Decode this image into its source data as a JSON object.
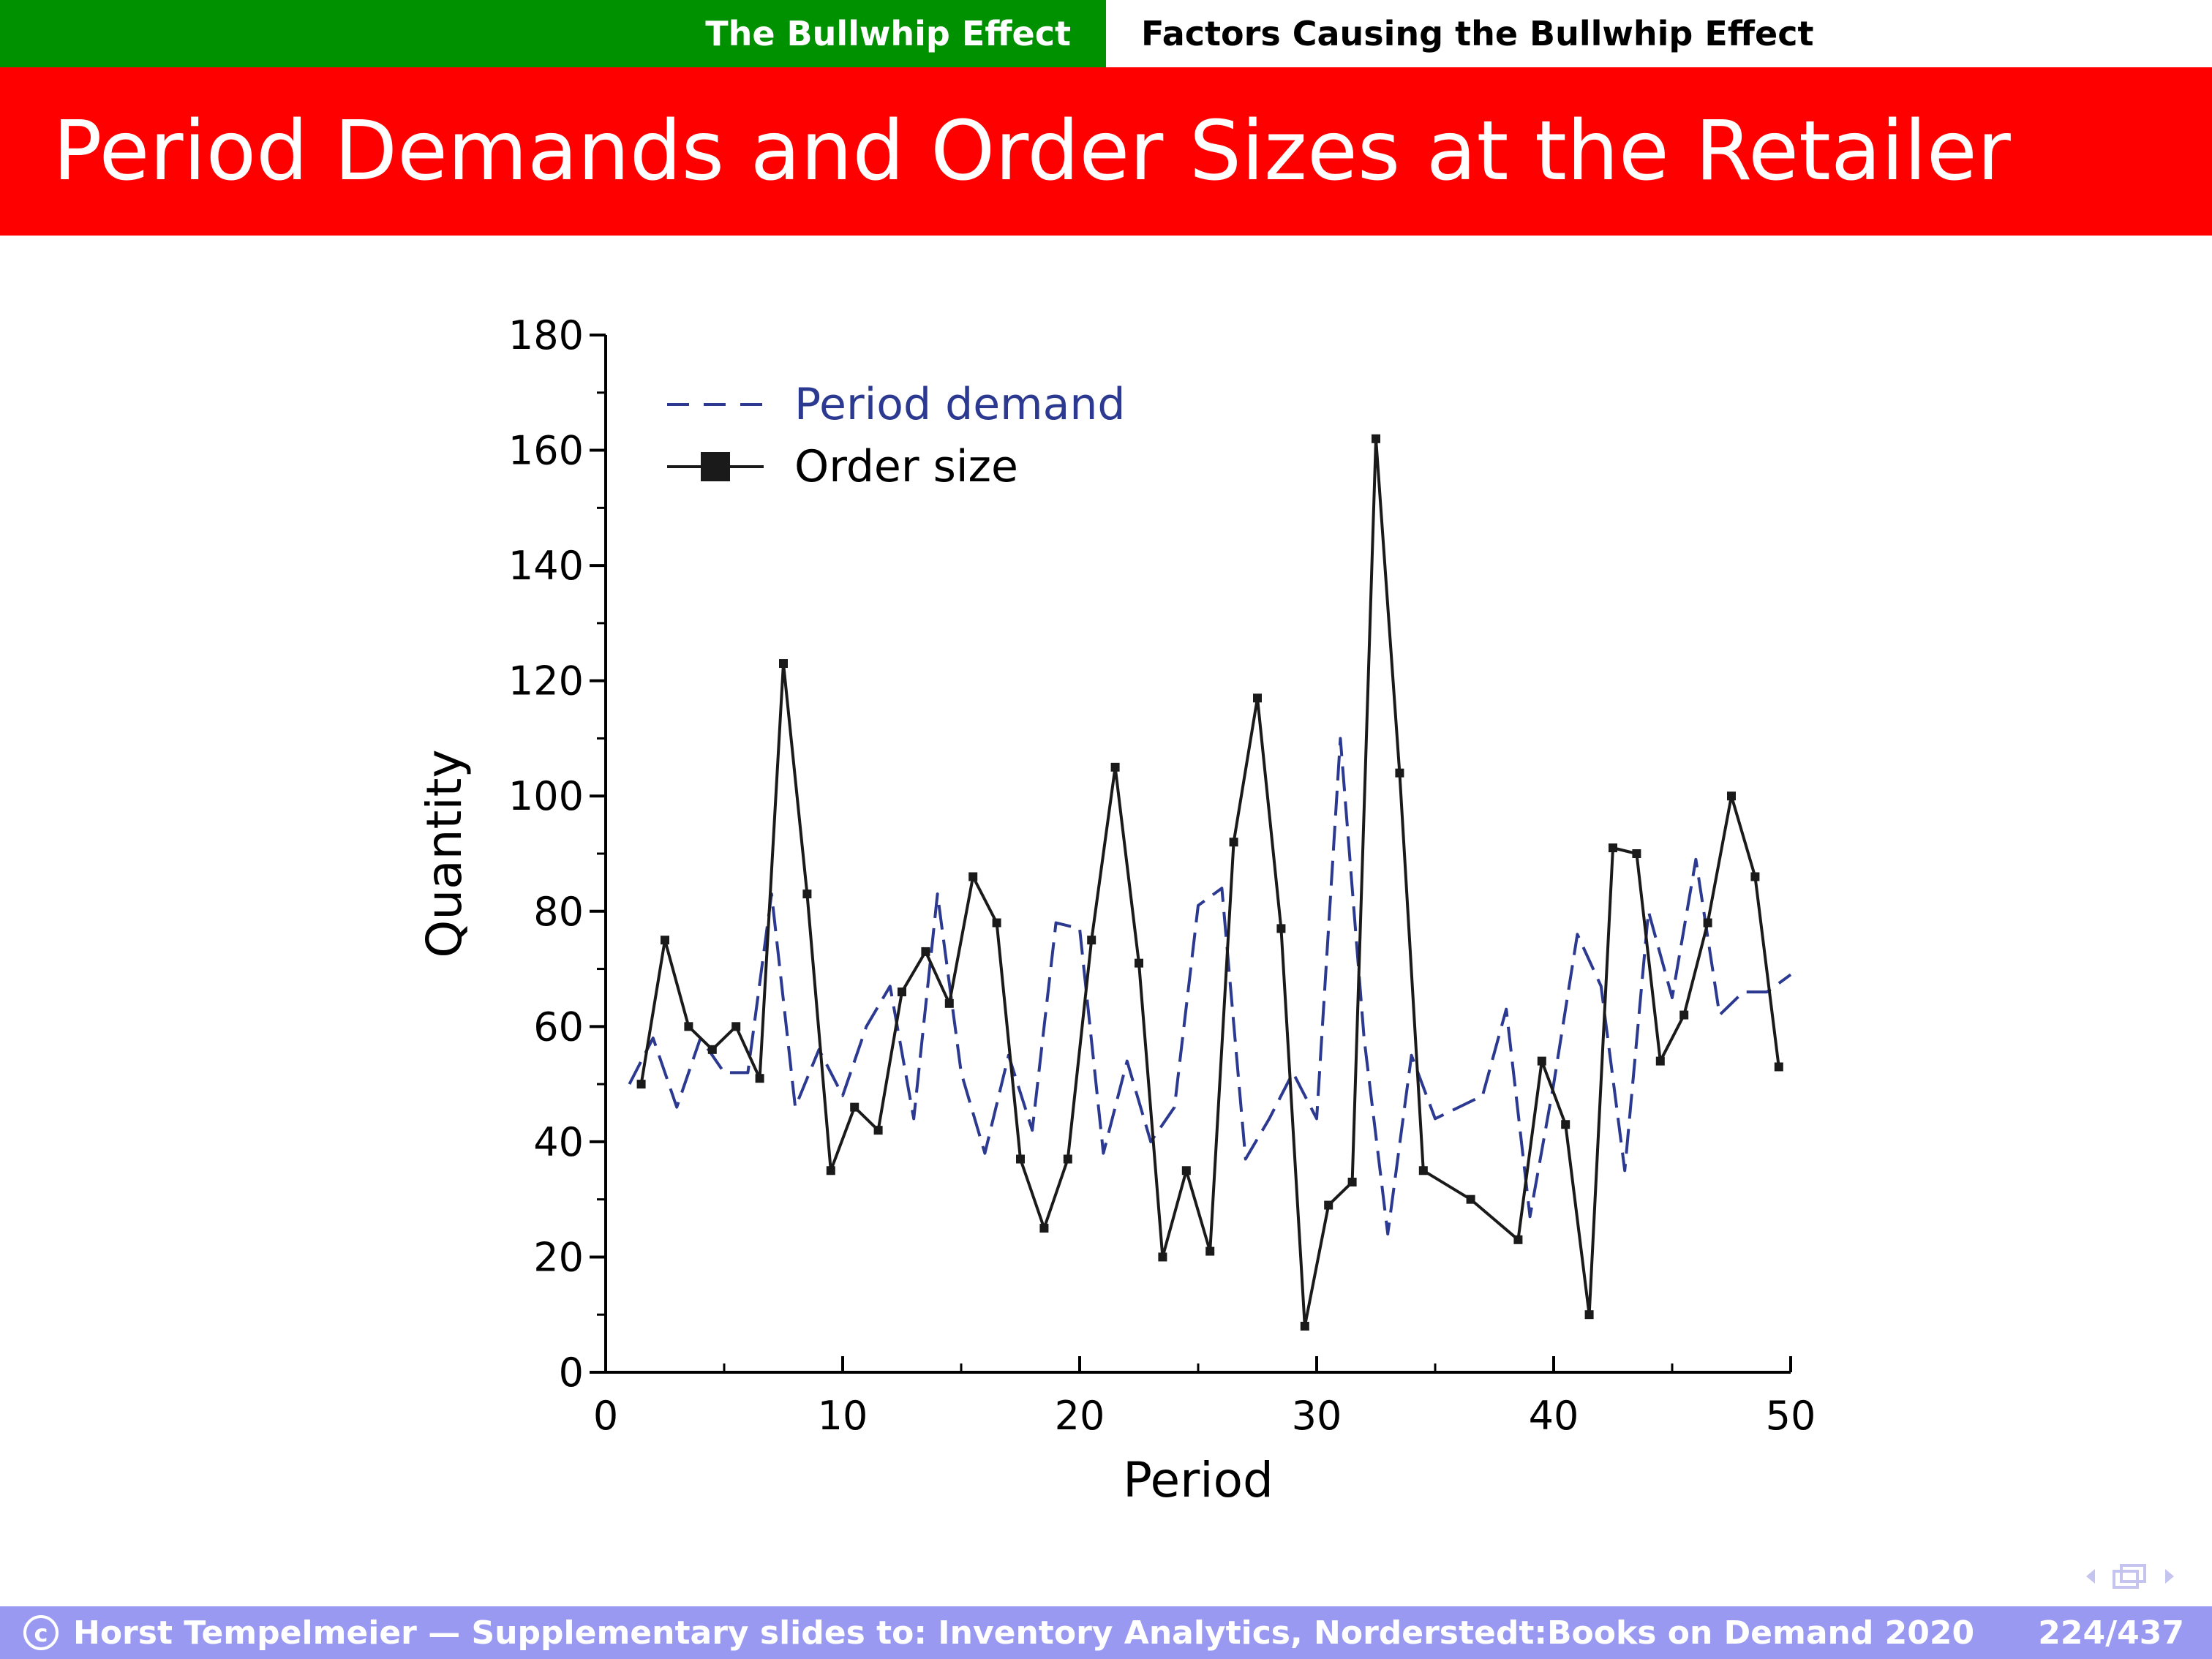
{
  "header": {
    "section": "The Bullwhip Effect",
    "subsection": "Factors Causing the Bullwhip Effect"
  },
  "slide": {
    "title": "Period Demands and Order Sizes at the Retailer"
  },
  "footer": {
    "copyright_symbol": "c",
    "text": "Horst Tempelmeier — Supplementary slides to: Inventory Analytics, Norderstedt:Books on Demand 2020",
    "page": "224/437"
  },
  "colors": {
    "section_bar": "#009100",
    "title_bar": "#ff0000",
    "footer_bar": "#9999f2",
    "demand_series": "#2b3990",
    "order_series": "#1a1a1a"
  },
  "chart_data": {
    "type": "line",
    "xlabel": "Period",
    "ylabel": "Quantity",
    "xlim": [
      0,
      50
    ],
    "ylim": [
      0,
      180
    ],
    "xticks": [
      0,
      10,
      20,
      30,
      40,
      50
    ],
    "yticks": [
      0,
      20,
      40,
      60,
      80,
      100,
      120,
      140,
      160,
      180
    ],
    "legend_position": "top-left",
    "series": [
      {
        "name": "Period demand",
        "style": "dashed",
        "x": [
          1,
          2,
          3,
          4,
          5,
          6,
          7,
          8,
          9,
          10,
          11,
          12,
          13,
          14,
          15,
          16,
          17,
          18,
          19,
          20,
          21,
          22,
          23,
          24,
          25,
          26,
          27,
          28,
          29,
          30,
          31,
          32,
          33,
          34,
          35,
          36,
          37,
          38,
          39,
          40,
          41,
          42,
          43,
          44,
          45,
          46,
          47,
          48,
          49,
          50
        ],
        "values": [
          50,
          58,
          46,
          58,
          52,
          52,
          83,
          46,
          56,
          48,
          60,
          67,
          44,
          83,
          52,
          38,
          55,
          42,
          78,
          77,
          38,
          54,
          40,
          46,
          81,
          84,
          37,
          44,
          52,
          44,
          110,
          58,
          24,
          55,
          44,
          46,
          48,
          63,
          27,
          50,
          76,
          67,
          35,
          80,
          65,
          89,
          62,
          66,
          66,
          69
        ]
      },
      {
        "name": "Order size",
        "style": "solid-square-markers",
        "x": [
          1.5,
          2.5,
          3.5,
          4.5,
          5.5,
          6.5,
          7.5,
          8.5,
          9.5,
          10.5,
          11.5,
          12.5,
          13.5,
          14.5,
          15.5,
          16.5,
          17.5,
          18.5,
          19.5,
          20.5,
          21.5,
          22.5,
          23.5,
          24.5,
          25.5,
          26.5,
          27.5,
          28.5,
          29.5,
          30.5,
          31.5,
          32.5,
          33.5,
          34.5,
          36.5,
          38.5,
          39.5,
          40.5,
          41.5,
          42.5,
          43.5,
          44.5,
          45.5,
          46.5,
          47.5,
          48.5,
          49.5
        ],
        "values": [
          50,
          75,
          60,
          56,
          60,
          51,
          123,
          83,
          35,
          46,
          42,
          66,
          73,
          64,
          86,
          78,
          37,
          25,
          37,
          75,
          105,
          71,
          20,
          35,
          21,
          92,
          117,
          77,
          8,
          29,
          33,
          162,
          104,
          35,
          30,
          23,
          54,
          43,
          10,
          91,
          90,
          54,
          62,
          78,
          100,
          86,
          53
        ]
      }
    ]
  }
}
